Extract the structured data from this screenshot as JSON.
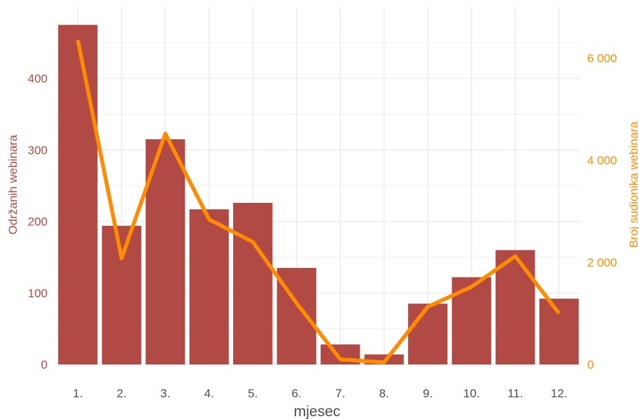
{
  "chart_data": {
    "type": "bar",
    "categories": [
      "1.",
      "2.",
      "3.",
      "4.",
      "5.",
      "6.",
      "7.",
      "8.",
      "9.",
      "10.",
      "11.",
      "12."
    ],
    "series": [
      {
        "type": "bar",
        "axis": "left",
        "color": "#b14a44",
        "values": [
          475,
          194,
          315,
          217,
          226,
          135,
          28,
          14,
          85,
          122,
          160,
          92
        ]
      },
      {
        "type": "line",
        "axis": "right",
        "color": "#ff8c00",
        "values": [
          6350,
          2080,
          4520,
          2840,
          2400,
          1200,
          100,
          40,
          1130,
          1520,
          2120,
          1000
        ]
      }
    ],
    "xlabel": "mjesec",
    "ylabel": "Održanih webinara",
    "ylabel_right": "Broj sudionika webinara",
    "ylim": [
      0,
      500
    ],
    "ylim_right": [
      0,
      7000
    ],
    "yticks": [
      0,
      100,
      200,
      300,
      400
    ],
    "ytick_labels": [
      "0",
      "100",
      "200",
      "300",
      "400"
    ],
    "yticks_right": [
      0,
      2000,
      4000,
      6000
    ],
    "ytick_labels_right": [
      "0",
      "2 000",
      "4 000",
      "6 000"
    ],
    "grid": true,
    "legend": "none"
  }
}
